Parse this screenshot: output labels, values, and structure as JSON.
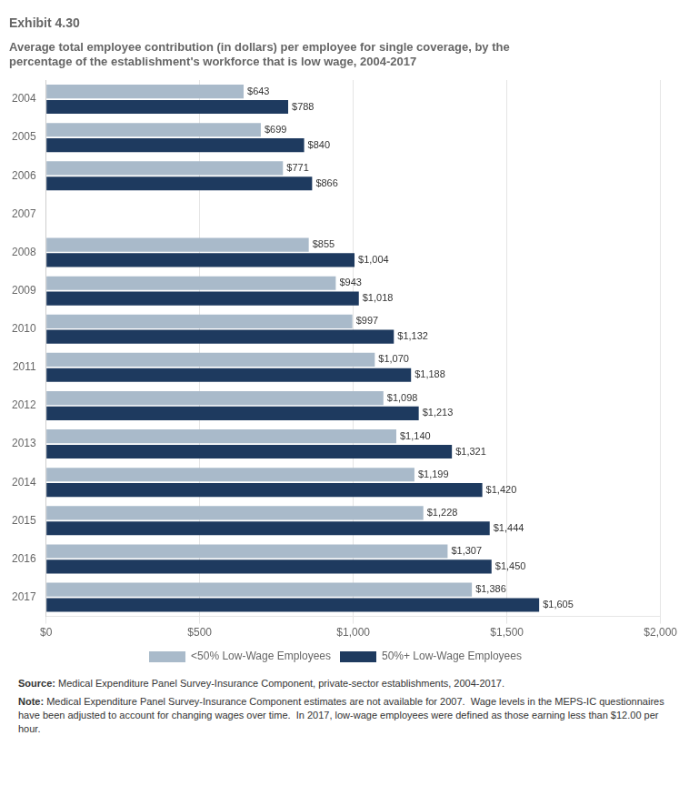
{
  "chart_data": {
    "type": "bar",
    "orientation": "horizontal",
    "title": "Exhibit 4.30",
    "subtitle": "Average total employee contribution (in dollars) per employee for single coverage, by the\npercentage of the establishment's workforce that is low wage, 2004-2017",
    "categories": [
      "2004",
      "2005",
      "2006",
      "2007",
      "2008",
      "2009",
      "2010",
      "2011",
      "2012",
      "2013",
      "2014",
      "2015",
      "2016",
      "2017"
    ],
    "series": [
      {
        "name": "<50% Low-Wage Employees",
        "color": "#a9baca",
        "values": [
          643,
          699,
          771,
          null,
          855,
          943,
          997,
          1070,
          1098,
          1140,
          1199,
          1228,
          1307,
          1386
        ],
        "value_labels": [
          "$643",
          "$699",
          "$771",
          null,
          "$855",
          "$943",
          "$997",
          "$1,070",
          "$1,098",
          "$1,140",
          "$1,199",
          "$1,228",
          "$1,307",
          "$1,386"
        ]
      },
      {
        "name": "50%+ Low-Wage Employees",
        "color": "#1e3a5f",
        "values": [
          788,
          840,
          866,
          null,
          1004,
          1018,
          1132,
          1188,
          1213,
          1321,
          1420,
          1444,
          1450,
          1605
        ],
        "value_labels": [
          "$788",
          "$840",
          "$866",
          null,
          "$1,004",
          "$1,018",
          "$1,132",
          "$1,188",
          "$1,213",
          "$1,321",
          "$1,420",
          "$1,444",
          "$1,450",
          "$1,605"
        ]
      }
    ],
    "xlim": [
      0,
      2000
    ],
    "xticks": [
      {
        "value": 0,
        "label": "$0"
      },
      {
        "value": 500,
        "label": "$500"
      },
      {
        "value": 1000,
        "label": "$1,000"
      },
      {
        "value": 1500,
        "label": "$1,500"
      },
      {
        "value": 2000,
        "label": "$2,000"
      }
    ],
    "grid": true,
    "legend": "bottom",
    "data_labels": true,
    "annotations": [
      "Source: Medical Expenditure Panel Survey-Insurance Component, private-sector establishments, 2004-2017.",
      "Note: Medical Expenditure Panel Survey-Insurance Component estimates are not available for 2007.  Wage levels in the MEPS-IC questionnaires have been adjusted to account for changing wages over time.  In 2017, low-wage employees were defined as those earning less than $12.00 per hour."
    ]
  }
}
